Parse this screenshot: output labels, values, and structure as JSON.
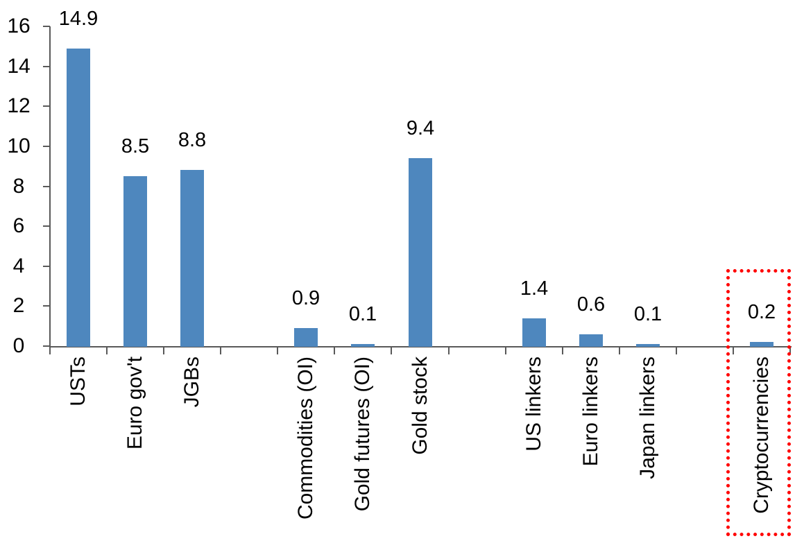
{
  "chart_data": {
    "type": "bar",
    "categories": [
      "USTs",
      "Euro gov't",
      "JGBs",
      "Commodities (OI)",
      "Gold futures (OI)",
      "Gold stock",
      "US linkers",
      "Euro linkers",
      "Japan linkers",
      "Cryptocurrencies"
    ],
    "values": [
      14.9,
      8.5,
      8.8,
      0.9,
      0.1,
      9.4,
      1.4,
      0.6,
      0.1,
      0.2
    ],
    "data_labels": [
      "14.9",
      "8.5",
      "8.8",
      "0.9",
      "0.1",
      "9.4",
      "1.4",
      "0.6",
      "0.1",
      "0.2"
    ],
    "slot_index": [
      0,
      1,
      2,
      4,
      5,
      6,
      8,
      9,
      10,
      12
    ],
    "total_slots": 13,
    "title": "",
    "xlabel": "",
    "ylabel": "",
    "ylim": [
      0,
      16
    ],
    "ytick_step": 2,
    "ytick_labels": [
      "0",
      "2",
      "4",
      "6",
      "8",
      "10",
      "12",
      "14",
      "16"
    ],
    "grid": false,
    "legend": false,
    "bar_color": "#4E87BE",
    "axis_color": "#595959",
    "text_color": "#000000",
    "highlight": {
      "target_category": "Cryptocurrencies",
      "shape": "red-dotted-rectangle",
      "color": "#FF0000"
    }
  }
}
